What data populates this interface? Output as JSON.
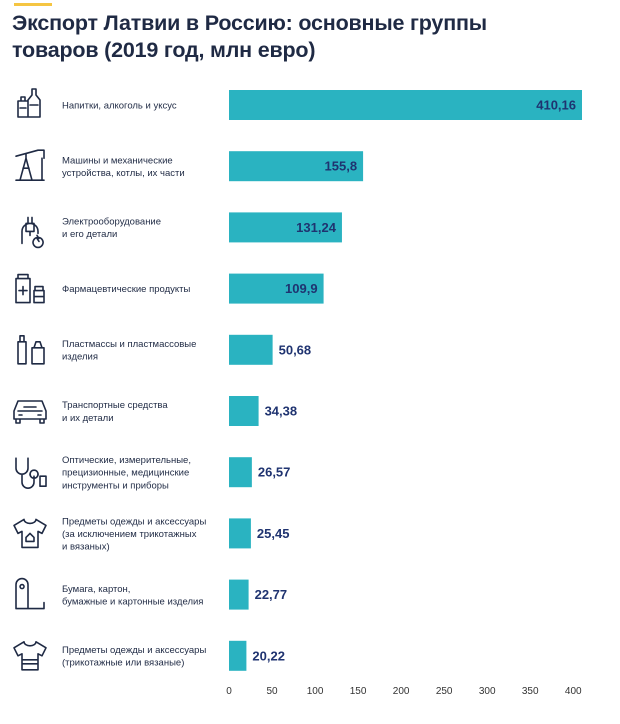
{
  "title_line1": "Экспорт Латвии в Россию: основные группы",
  "title_line2": "товаров (2019 год, млн евро)",
  "colors": {
    "bar": "#2ab3c1",
    "title": "#1f2a44",
    "value": "#1f3370",
    "accent": "#f5c542"
  },
  "chart_data": {
    "type": "bar",
    "orientation": "horizontal",
    "title": "Экспорт Латвии в Россию: основные группы товаров (2019 год, млн евро)",
    "categories": [
      [
        "Напитки, алкоголь и уксус"
      ],
      [
        "Машины и механические",
        "устройства, котлы, их части"
      ],
      [
        "Электрооборудование",
        "и его детали"
      ],
      [
        "Фармацевтические продукты"
      ],
      [
        "Пластмассы и пластмассовые",
        "изделия"
      ],
      [
        "Транспортные средства",
        "и их детали"
      ],
      [
        "Оптические,  измерительные,",
        "прецизионные, медицинские",
        "инструменты и приборы"
      ],
      [
        "Предметы одежды и аксессуары",
        "(за исключением трикотажных",
        "и вязаных)"
      ],
      [
        "Бумага, картон,",
        "бумажные и картонные изделия"
      ],
      [
        "Предметы одежды и аксессуары",
        "(трикотажные или вязаные)"
      ]
    ],
    "icons": [
      "bottles-icon",
      "oil-pump-icon",
      "plug-icon",
      "medicine-icon",
      "plastic-bottle-icon",
      "car-icon",
      "stethoscope-icon",
      "tshirt-icon",
      "paper-roll-icon",
      "knit-shirt-icon"
    ],
    "values": [
      410.16,
      155.8,
      131.24,
      109.9,
      50.68,
      34.38,
      26.57,
      25.45,
      22.77,
      20.22
    ],
    "value_labels": [
      "410,16",
      "155,8",
      "131,24",
      "109,9",
      "50,68",
      "34,38",
      "26,57",
      "25,45",
      "22,77",
      "20,22"
    ],
    "xticks": [
      "0",
      "50",
      "100",
      "150",
      "200",
      "250",
      "300",
      "350",
      "400"
    ],
    "xlim": [
      0,
      410.16
    ],
    "grid": false,
    "legend": "none"
  }
}
